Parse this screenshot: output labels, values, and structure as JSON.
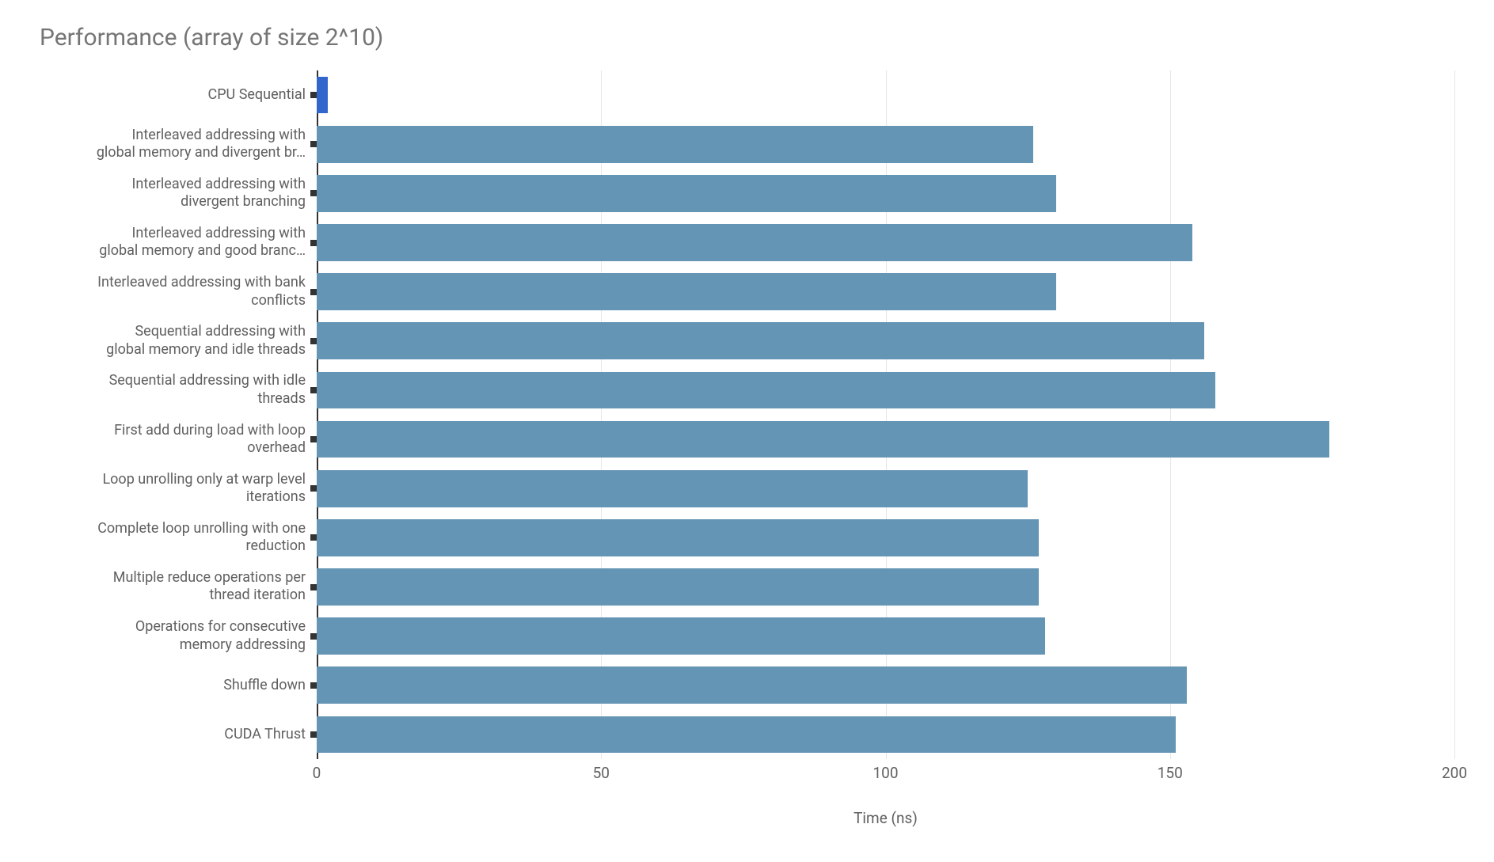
{
  "chart": {
    "type": "bar-horizontal",
    "title": "Performance (array of size 2^10)",
    "title_color": "#757575",
    "title_fontsize": 30,
    "background_color": "#ffffff",
    "bar_padding_ratio": 0.25,
    "series": [
      {
        "label_lines": [
          "CPU Sequential"
        ],
        "value": 2,
        "color": "#3366cc"
      },
      {
        "label_lines": [
          "Interleaved addressing with",
          "global memory and divergent br…"
        ],
        "value": 126,
        "color": "#6495b4"
      },
      {
        "label_lines": [
          "Interleaved addressing with",
          "divergent branching"
        ],
        "value": 130,
        "color": "#6495b4"
      },
      {
        "label_lines": [
          "Interleaved addressing with",
          "global memory and good branc…"
        ],
        "value": 154,
        "color": "#6495b4"
      },
      {
        "label_lines": [
          "Interleaved addressing with bank",
          "conflicts"
        ],
        "value": 130,
        "color": "#6495b4"
      },
      {
        "label_lines": [
          "Sequential addressing with",
          "global memory and idle threads"
        ],
        "value": 156,
        "color": "#6495b4"
      },
      {
        "label_lines": [
          "Sequential addressing with idle",
          "threads"
        ],
        "value": 158,
        "color": "#6495b4"
      },
      {
        "label_lines": [
          "First add during load with loop",
          "overhead"
        ],
        "value": 178,
        "color": "#6495b4"
      },
      {
        "label_lines": [
          "Loop unrolling only at warp level",
          "iterations"
        ],
        "value": 125,
        "color": "#6495b4"
      },
      {
        "label_lines": [
          "Complete loop unrolling with one",
          "reduction"
        ],
        "value": 127,
        "color": "#6495b4"
      },
      {
        "label_lines": [
          "Multiple reduce operations per",
          "thread iteration"
        ],
        "value": 127,
        "color": "#6495b4"
      },
      {
        "label_lines": [
          "Operations for consecutive",
          "memory addressing"
        ],
        "value": 128,
        "color": "#6495b4"
      },
      {
        "label_lines": [
          "Shuffle down"
        ],
        "value": 153,
        "color": "#6495b4"
      },
      {
        "label_lines": [
          "CUDA Thrust"
        ],
        "value": 151,
        "color": "#6495b4"
      }
    ],
    "x_axis": {
      "title": "Time (ns)",
      "min": 0,
      "max": 200,
      "ticks": [
        0,
        50,
        100,
        150,
        200
      ],
      "grid_color": "#e6e6e6",
      "axis_color": "#333333",
      "tick_label_fontsize": 19,
      "tick_label_color": "#606060"
    },
    "y_axis": {
      "label_fontsize": 18,
      "label_color": "#606060",
      "tick_color": "#333333"
    }
  }
}
